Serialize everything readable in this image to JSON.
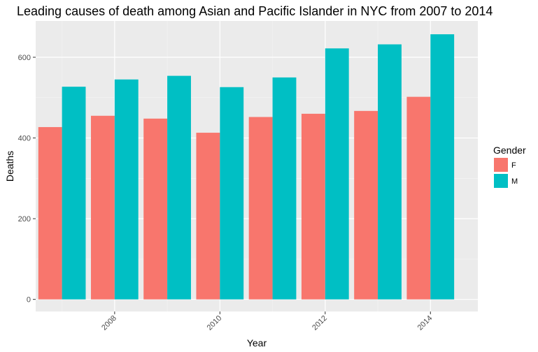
{
  "chart_data": {
    "type": "bar",
    "title": "Leading causes of death among Asian and Pacific Islander in NYC from 2007 to 2014",
    "xlabel": "Year",
    "ylabel": "Deaths",
    "x": [
      2007,
      2008,
      2009,
      2010,
      2011,
      2012,
      2013,
      2014
    ],
    "x_ticks": [
      2008,
      2010,
      2012,
      2014
    ],
    "xlim": [
      2006.5,
      2014.9
    ],
    "y_ticks": [
      0,
      200,
      400,
      600
    ],
    "ylim": [
      -30,
      690
    ],
    "grid": true,
    "legend": {
      "title": "Gender",
      "position": "right"
    },
    "series": [
      {
        "name": "F",
        "color": "#F8766D",
        "values": [
          427,
          455,
          448,
          413,
          452,
          460,
          467,
          502
        ]
      },
      {
        "name": "M",
        "color": "#00BFC4",
        "values": [
          527,
          545,
          554,
          526,
          550,
          622,
          632,
          657
        ]
      }
    ]
  }
}
